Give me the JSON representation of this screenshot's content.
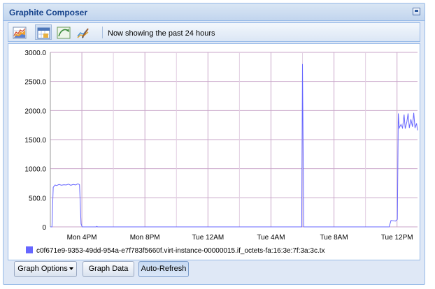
{
  "window": {
    "title": "Graphite Composer"
  },
  "toolbar": {
    "buttons": [
      {
        "icon": "graph-icon"
      },
      {
        "icon": "calendar-icon"
      },
      {
        "icon": "recent-range-icon"
      },
      {
        "icon": "edit-icon"
      }
    ],
    "status": "Now showing the past 24 hours"
  },
  "chart_data": {
    "type": "line",
    "title": "",
    "xlabel": "",
    "ylabel": "",
    "x_tick_labels": [
      "Mon  4PM",
      "Mon  8PM",
      "Tue 12AM",
      "Tue  4AM",
      "Tue  8AM",
      "Tue 12PM"
    ],
    "y_tick_labels": [
      "0",
      "500.0",
      "1000.0",
      "1500.0",
      "2000.0",
      "2500.0",
      "3000.0"
    ],
    "ylim": [
      0,
      3000
    ],
    "x_unit": "hours since Mon 2PM",
    "xlim": [
      0,
      23.3
    ],
    "grid": true,
    "legend_position": "bottom-left",
    "colors": {
      "series": "#6666ff",
      "grid": "#c9a6c9"
    },
    "series": [
      {
        "name": "c0f671e9-9353-49dd-954a-e7f783f5660f.virt-instance-00000015.if_octets-fa:16:3e:7f:3a:3c.tx",
        "points": [
          [
            0.0,
            0
          ],
          [
            0.1,
            0
          ],
          [
            0.18,
            680
          ],
          [
            0.3,
            720
          ],
          [
            0.4,
            710
          ],
          [
            0.55,
            730
          ],
          [
            0.7,
            715
          ],
          [
            0.85,
            725
          ],
          [
            1.0,
            720
          ],
          [
            1.15,
            735
          ],
          [
            1.3,
            715
          ],
          [
            1.45,
            730
          ],
          [
            1.6,
            720
          ],
          [
            1.75,
            740
          ],
          [
            1.85,
            725
          ],
          [
            1.95,
            50
          ],
          [
            2.02,
            0
          ],
          [
            2.9,
            0
          ],
          [
            2.95,
            10
          ],
          [
            3.0,
            0
          ],
          [
            15.95,
            0
          ],
          [
            16.0,
            2800
          ],
          [
            16.08,
            0
          ],
          [
            21.5,
            0
          ],
          [
            21.62,
            110
          ],
          [
            21.9,
            100
          ],
          [
            22.02,
            130
          ],
          [
            22.08,
            1950
          ],
          [
            22.14,
            1700
          ],
          [
            22.25,
            1760
          ],
          [
            22.35,
            1700
          ],
          [
            22.45,
            1930
          ],
          [
            22.52,
            1690
          ],
          [
            22.62,
            1800
          ],
          [
            22.7,
            1950
          ],
          [
            22.78,
            1700
          ],
          [
            22.88,
            1850
          ],
          [
            22.98,
            1720
          ],
          [
            23.06,
            1960
          ],
          [
            23.14,
            1700
          ],
          [
            23.24,
            1780
          ],
          [
            23.3,
            1660
          ]
        ]
      }
    ]
  },
  "footer": {
    "graph_options": "Graph Options",
    "graph_data": "Graph Data",
    "auto_refresh": "Auto-Refresh"
  }
}
